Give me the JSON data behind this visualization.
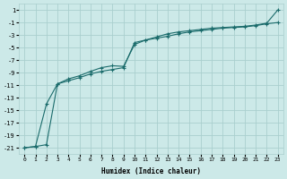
{
  "xlabel": "Humidex (Indice chaleur)",
  "background_color": "#cce9e8",
  "grid_color": "#aacfce",
  "line_color": "#1a6b6b",
  "x_ticks": [
    0,
    1,
    2,
    3,
    4,
    5,
    6,
    7,
    8,
    9,
    10,
    11,
    12,
    13,
    14,
    15,
    16,
    17,
    18,
    19,
    20,
    21,
    22,
    23
  ],
  "y_ticks": [
    1,
    -1,
    -3,
    -5,
    -7,
    -9,
    -11,
    -13,
    -15,
    -17,
    -19,
    -21
  ],
  "ylim": [
    -22,
    2
  ],
  "xlim": [
    -0.5,
    23.5
  ],
  "line1_x": [
    0,
    1,
    2,
    3,
    4,
    5,
    6,
    7,
    8,
    9,
    10,
    11,
    12,
    13,
    14,
    15,
    16,
    17,
    18,
    19,
    20,
    21,
    22,
    23
  ],
  "line1_y": [
    -21,
    -20.8,
    -20.5,
    -10.8,
    -10.3,
    -9.8,
    -9.2,
    -8.8,
    -8.5,
    -8.2,
    -4.2,
    -3.8,
    -3.5,
    -3.2,
    -2.8,
    -2.5,
    -2.3,
    -2.1,
    -1.9,
    -1.8,
    -1.7,
    -1.5,
    -1.2,
    -1.0
  ],
  "line2_x": [
    0,
    1,
    2,
    3,
    4,
    5,
    6,
    7,
    8,
    9,
    10,
    11,
    12,
    13,
    14,
    15,
    16,
    17,
    18,
    19,
    20,
    21,
    22,
    23
  ],
  "line2_y": [
    -21,
    -20.8,
    -14.0,
    -10.8,
    -10.0,
    -9.5,
    -8.8,
    -8.2,
    -7.9,
    -8.0,
    -4.5,
    -3.8,
    -3.3,
    -2.8,
    -2.5,
    -2.3,
    -2.1,
    -1.9,
    -1.8,
    -1.7,
    -1.6,
    -1.4,
    -1.1,
    1.0
  ]
}
